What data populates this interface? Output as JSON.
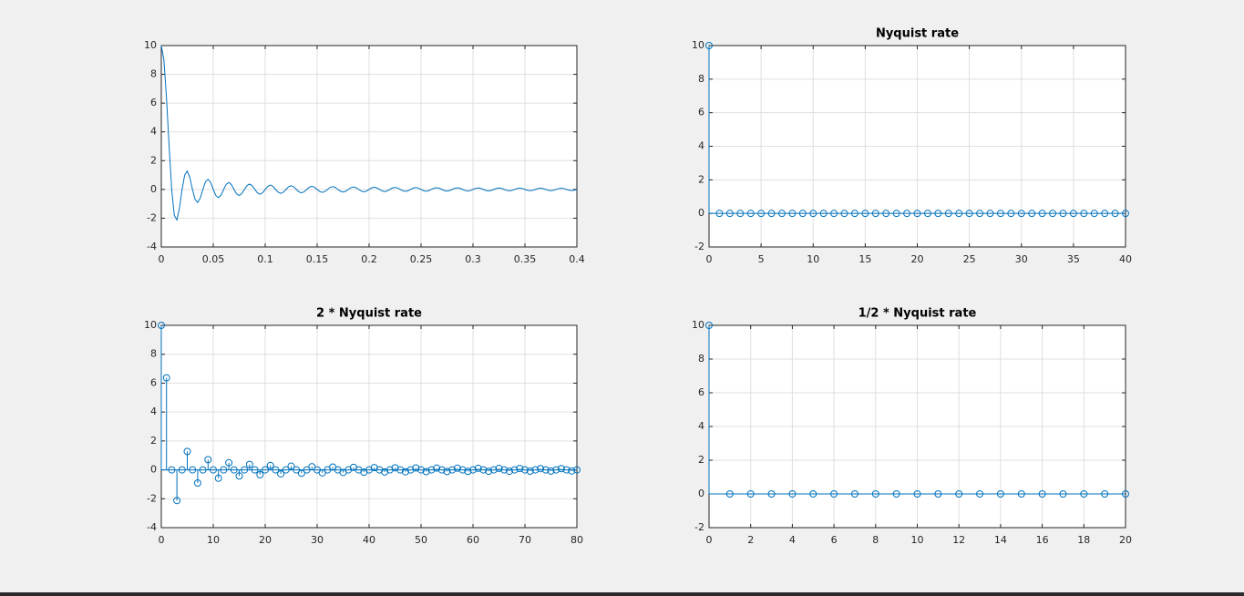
{
  "chart_data": [
    {
      "type": "line",
      "color": "#0072bd",
      "grid": true,
      "xlim": [
        0,
        0.4
      ],
      "xticks": [
        0,
        0.05,
        0.1,
        0.15,
        0.2,
        0.25,
        0.3,
        0.35,
        0.4
      ],
      "ylim": [
        -4,
        10
      ],
      "yticks": [
        -4,
        -2,
        0,
        2,
        4,
        6,
        8,
        10
      ],
      "x": [
        0,
        0.0025,
        0.005,
        0.0075,
        0.01,
        0.0125,
        0.015,
        0.0175,
        0.02,
        0.0225,
        0.025,
        0.0275,
        0.03,
        0.0325,
        0.035,
        0.0375,
        0.04,
        0.0425,
        0.045,
        0.0475,
        0.05,
        0.0525,
        0.055,
        0.0575,
        0.06,
        0.0625,
        0.065,
        0.0675,
        0.07,
        0.0725,
        0.075,
        0.0775,
        0.08,
        0.0825,
        0.085,
        0.0875,
        0.09,
        0.0925,
        0.095,
        0.0975,
        0.1,
        0.1025,
        0.105,
        0.1075,
        0.11,
        0.1125,
        0.115,
        0.1175,
        0.12,
        0.1225,
        0.125,
        0.1275,
        0.13,
        0.1325,
        0.135,
        0.1375,
        0.14,
        0.1425,
        0.145,
        0.1475,
        0.15,
        0.1525,
        0.155,
        0.1575,
        0.16,
        0.1625,
        0.165,
        0.1675,
        0.17,
        0.1725,
        0.175,
        0.1775,
        0.18,
        0.1825,
        0.185,
        0.1875,
        0.19,
        0.1925,
        0.195,
        0.1975,
        0.2,
        0.2025,
        0.205,
        0.2075,
        0.21,
        0.2125,
        0.215,
        0.2175,
        0.22,
        0.2225,
        0.225,
        0.2275,
        0.23,
        0.2325,
        0.235,
        0.2375,
        0.24,
        0.2425,
        0.245,
        0.2475,
        0.25,
        0.2525,
        0.255,
        0.2575,
        0.26,
        0.2625,
        0.265,
        0.2675,
        0.27,
        0.2725,
        0.275,
        0.2775,
        0.28,
        0.2825,
        0.285,
        0.2875,
        0.29,
        0.2925,
        0.295,
        0.2975,
        0.3,
        0.3025,
        0.305,
        0.3075,
        0.31,
        0.3125,
        0.315,
        0.3175,
        0.32,
        0.3225,
        0.325,
        0.3275,
        0.33,
        0.3325,
        0.335,
        0.3375,
        0.34,
        0.3425,
        0.345,
        0.3475,
        0.35,
        0.3525,
        0.355,
        0.3575,
        0.36,
        0.3625,
        0.365,
        0.3675,
        0.37,
        0.3725,
        0.375,
        0.3775,
        0.38,
        0.3825,
        0.385,
        0.3875,
        0.39,
        0.3925,
        0.395,
        0.3975,
        0.4
      ],
      "values": [
        10,
        9.003,
        6.366,
        3.001,
        0,
        -1.801,
        -2.122,
        -1.286,
        0,
        1.0,
        1.273,
        0.818,
        0,
        -0.693,
        -0.909,
        -0.6,
        0,
        0.53,
        0.707,
        0.474,
        0,
        -0.429,
        -0.579,
        -0.391,
        0,
        0.36,
        0.49,
        0.333,
        0,
        -0.31,
        -0.424,
        -0.29,
        0,
        0.273,
        0.374,
        0.257,
        0,
        -0.243,
        -0.335,
        -0.231,
        0,
        0.22,
        0.303,
        0.209,
        0,
        -0.2,
        -0.277,
        -0.192,
        0,
        0.184,
        0.255,
        0.177,
        0,
        -0.17,
        -0.236,
        -0.164,
        0,
        0.158,
        0.22,
        0.153,
        0,
        -0.148,
        -0.205,
        -0.143,
        0,
        0.139,
        0.193,
        0.134,
        0,
        -0.13,
        -0.182,
        -0.127,
        0,
        0.123,
        0.172,
        0.12,
        0,
        -0.117,
        -0.163,
        -0.114,
        0,
        0.111,
        0.155,
        0.108,
        0,
        -0.106,
        -0.148,
        -0.103,
        0,
        0.101,
        0.141,
        0.099,
        0,
        -0.097,
        -0.135,
        -0.095,
        0,
        0.093,
        0.13,
        0.091,
        0,
        -0.089,
        -0.125,
        -0.087,
        0,
        0.086,
        0.12,
        0.084,
        0,
        -0.083,
        -0.116,
        -0.081,
        0,
        0.08,
        0.112,
        0.078,
        0,
        -0.077,
        -0.108,
        -0.076,
        0,
        0.074,
        0.104,
        0.073,
        0,
        -0.072,
        -0.101,
        -0.071,
        0,
        0.07,
        0.098,
        0.069,
        0,
        -0.068,
        -0.095,
        -0.067,
        0,
        0.066,
        0.092,
        0.065,
        0,
        -0.064,
        -0.09,
        -0.063,
        0,
        0.062,
        0.087,
        0.061,
        0,
        -0.06,
        -0.085,
        -0.06,
        0,
        0.059,
        0.083,
        0.058,
        0,
        -0.057,
        -0.081,
        -0.057,
        0
      ]
    },
    {
      "type": "stem",
      "title": "Nyquist rate",
      "color": "#0072bd",
      "grid": true,
      "xlim": [
        0,
        40
      ],
      "xticks": [
        0,
        5,
        10,
        15,
        20,
        25,
        30,
        35,
        40
      ],
      "ylim": [
        -2,
        10
      ],
      "yticks": [
        -2,
        0,
        2,
        4,
        6,
        8,
        10
      ],
      "x": [
        0,
        1,
        2,
        3,
        4,
        5,
        6,
        7,
        8,
        9,
        10,
        11,
        12,
        13,
        14,
        15,
        16,
        17,
        18,
        19,
        20,
        21,
        22,
        23,
        24,
        25,
        26,
        27,
        28,
        29,
        30,
        31,
        32,
        33,
        34,
        35,
        36,
        37,
        38,
        39,
        40
      ],
      "values": [
        10,
        0,
        0,
        0,
        0,
        0,
        0,
        0,
        0,
        0,
        0,
        0,
        0,
        0,
        0,
        0,
        0,
        0,
        0,
        0,
        0,
        0,
        0,
        0,
        0,
        0,
        0,
        0,
        0,
        0,
        0,
        0,
        0,
        0,
        0,
        0,
        0,
        0,
        0,
        0,
        0
      ]
    },
    {
      "type": "stem",
      "title": "2 * Nyquist rate",
      "color": "#0072bd",
      "grid": true,
      "xlim": [
        0,
        80
      ],
      "xticks": [
        0,
        10,
        20,
        30,
        40,
        50,
        60,
        70,
        80
      ],
      "ylim": [
        -4,
        10
      ],
      "yticks": [
        -4,
        -2,
        0,
        2,
        4,
        6,
        8,
        10
      ],
      "x": [
        0,
        1,
        2,
        3,
        4,
        5,
        6,
        7,
        8,
        9,
        10,
        11,
        12,
        13,
        14,
        15,
        16,
        17,
        18,
        19,
        20,
        21,
        22,
        23,
        24,
        25,
        26,
        27,
        28,
        29,
        30,
        31,
        32,
        33,
        34,
        35,
        36,
        37,
        38,
        39,
        40,
        41,
        42,
        43,
        44,
        45,
        46,
        47,
        48,
        49,
        50,
        51,
        52,
        53,
        54,
        55,
        56,
        57,
        58,
        59,
        60,
        61,
        62,
        63,
        64,
        65,
        66,
        67,
        68,
        69,
        70,
        71,
        72,
        73,
        74,
        75,
        76,
        77,
        78,
        79,
        80
      ],
      "values": [
        10,
        6.366,
        0,
        -2.122,
        0,
        1.273,
        0,
        -0.909,
        0,
        0.707,
        0,
        -0.579,
        0,
        0.49,
        0,
        -0.424,
        0,
        0.374,
        0,
        -0.335,
        0,
        0.303,
        0,
        -0.277,
        0,
        0.255,
        0,
        -0.236,
        0,
        0.22,
        0,
        -0.205,
        0,
        0.193,
        0,
        -0.182,
        0,
        0.172,
        0,
        -0.163,
        0,
        0.155,
        0,
        -0.148,
        0,
        0.141,
        0,
        -0.135,
        0,
        0.13,
        0,
        -0.125,
        0,
        0.12,
        0,
        -0.116,
        0,
        0.112,
        0,
        -0.108,
        0,
        0.104,
        0,
        -0.101,
        0,
        0.098,
        0,
        -0.095,
        0,
        0.092,
        0,
        -0.09,
        0,
        0.087,
        0,
        -0.085,
        0,
        0.083,
        0,
        -0.081,
        0
      ]
    },
    {
      "type": "stem",
      "title": "1/2 * Nyquist rate",
      "color": "#0072bd",
      "grid": true,
      "xlim": [
        0,
        20
      ],
      "xticks": [
        0,
        2,
        4,
        6,
        8,
        10,
        12,
        14,
        16,
        18,
        20
      ],
      "ylim": [
        -2,
        10
      ],
      "yticks": [
        -2,
        0,
        2,
        4,
        6,
        8,
        10
      ],
      "x": [
        0,
        1,
        2,
        3,
        4,
        5,
        6,
        7,
        8,
        9,
        10,
        11,
        12,
        13,
        14,
        15,
        16,
        17,
        18,
        19,
        20
      ],
      "values": [
        10,
        0,
        0,
        0,
        0,
        0,
        0,
        0,
        0,
        0,
        0,
        0,
        0,
        0,
        0,
        0,
        0,
        0,
        0,
        0,
        0
      ]
    }
  ]
}
